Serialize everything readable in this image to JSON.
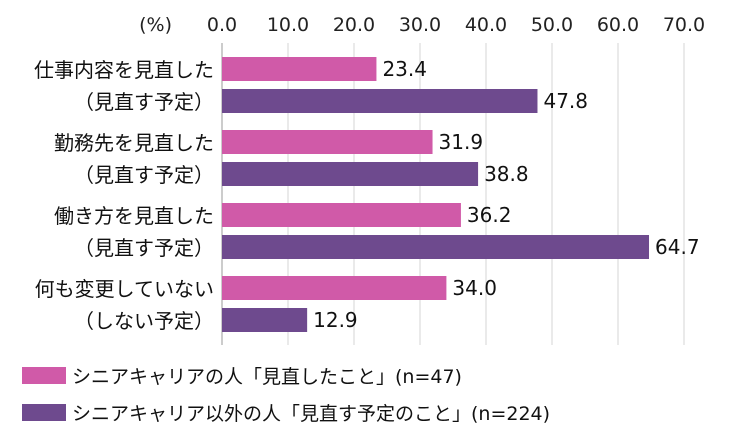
{
  "chart_data": {
    "type": "bar",
    "orientation": "horizontal",
    "unit_label": "(%)",
    "xlim": [
      0,
      70
    ],
    "ticks": [
      "0.0",
      "10.0",
      "20.0",
      "30.0",
      "40.0",
      "50.0",
      "60.0",
      "70.0"
    ],
    "grid": true,
    "legend_position": "bottom-left",
    "categories": [
      {
        "line1": "仕事内容を見直した",
        "line2": "（見直す予定）"
      },
      {
        "line1": "勤務先を見直した",
        "line2": "（見直す予定）"
      },
      {
        "line1": "働き方を見直した",
        "line2": "（見直す予定）"
      },
      {
        "line1": "何も変更していない",
        "line2": "（しない予定）"
      }
    ],
    "series": [
      {
        "name": "シニアキャリアの人「見直したこと」(n=47)",
        "color": "#d05aa8",
        "values": [
          23.4,
          31.9,
          36.2,
          34.0
        ]
      },
      {
        "name": "シニアキャリア以外の人「見直す予定のこと」(n=224)",
        "color": "#6e4a8e",
        "values": [
          47.8,
          38.8,
          64.7,
          12.9
        ]
      }
    ]
  }
}
